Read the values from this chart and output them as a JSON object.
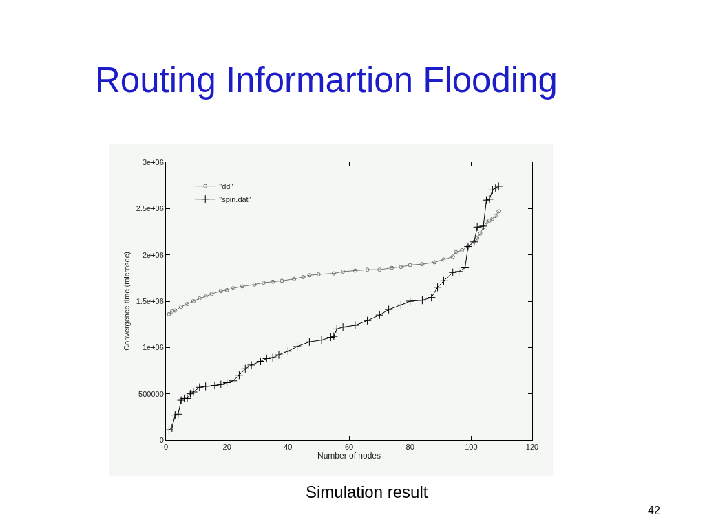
{
  "chart_data": {
    "type": "line",
    "title": "Routing Informartion Flooding",
    "xlabel": "Number of nodes",
    "ylabel": "Convergence time (microsec)",
    "xlim": [
      0,
      120
    ],
    "xticks": [
      0,
      20,
      40,
      60,
      80,
      100,
      120
    ],
    "ylim": [
      0,
      3000000
    ],
    "yticks": [
      0,
      500000,
      {
        "value": 1000000,
        "label": "1e+06"
      },
      {
        "value": 1500000,
        "label": "1.5e+06"
      },
      {
        "value": 2000000,
        "label": "2e+06"
      },
      {
        "value": 2500000,
        "label": "2.5e+06"
      },
      {
        "value": 3000000,
        "label": "3e+06"
      }
    ],
    "legend": "top left",
    "grid": false,
    "series": [
      {
        "name": "\"dd\"",
        "color": "#707070",
        "marker": "circle",
        "x": [
          1,
          2,
          3,
          5,
          7,
          9,
          11,
          13,
          15,
          18,
          20,
          22,
          25,
          29,
          32,
          35,
          38,
          42,
          45,
          47,
          50,
          55,
          58,
          62,
          66,
          70,
          74,
          77,
          80,
          84,
          88,
          91,
          94,
          95,
          97,
          99,
          101,
          102,
          103,
          104,
          105,
          106,
          107,
          108,
          109
        ],
        "values": [
          1360000,
          1390000,
          1400000,
          1440000,
          1470000,
          1500000,
          1530000,
          1550000,
          1580000,
          1610000,
          1620000,
          1640000,
          1660000,
          1680000,
          1700000,
          1710000,
          1720000,
          1740000,
          1760000,
          1780000,
          1790000,
          1800000,
          1820000,
          1830000,
          1840000,
          1840000,
          1860000,
          1870000,
          1890000,
          1900000,
          1920000,
          1950000,
          1980000,
          2030000,
          2050000,
          2090000,
          2140000,
          2180000,
          2230000,
          2300000,
          2350000,
          2370000,
          2390000,
          2420000,
          2470000
        ]
      },
      {
        "name": "\"spin.dat\"",
        "color": "#000000",
        "marker": "cross",
        "x": [
          1,
          2,
          3,
          4,
          5,
          6,
          7,
          8,
          9,
          11,
          13,
          16,
          18,
          20,
          22,
          24,
          26,
          28,
          31,
          33,
          35,
          37,
          40,
          43,
          47,
          51,
          54,
          55,
          56,
          58,
          62,
          66,
          70,
          73,
          77,
          80,
          84,
          87,
          89,
          91,
          94,
          96,
          98,
          99,
          101,
          102,
          104,
          105,
          106,
          107,
          108,
          109
        ],
        "values": [
          110000,
          130000,
          270000,
          280000,
          430000,
          450000,
          450000,
          500000,
          520000,
          570000,
          580000,
          590000,
          600000,
          620000,
          640000,
          700000,
          770000,
          810000,
          850000,
          880000,
          890000,
          920000,
          960000,
          1010000,
          1060000,
          1080000,
          1110000,
          1120000,
          1200000,
          1220000,
          1240000,
          1290000,
          1350000,
          1410000,
          1460000,
          1500000,
          1510000,
          1540000,
          1650000,
          1720000,
          1810000,
          1820000,
          1860000,
          2090000,
          2140000,
          2300000,
          2310000,
          2590000,
          2600000,
          2700000,
          2720000,
          2740000
        ]
      }
    ],
    "annotations": [
      "Simulation result",
      "42"
    ]
  }
}
